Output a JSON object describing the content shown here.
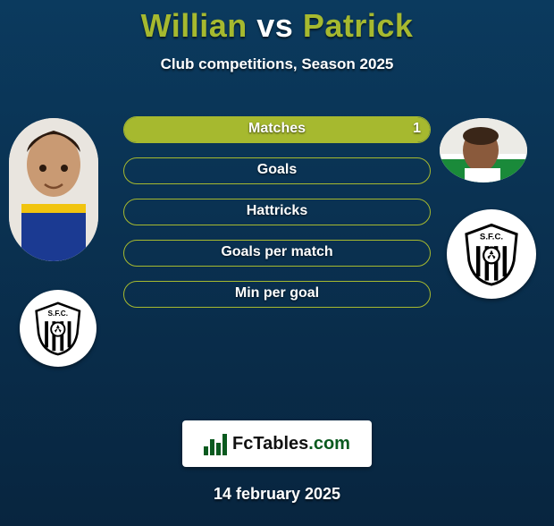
{
  "header": {
    "player1": "Willian",
    "vs": "vs",
    "player2": "Patrick",
    "subtitle": "Club competitions, Season 2025"
  },
  "colors": {
    "accent": "#a6b92f",
    "background_top": "#0b3a5e",
    "background_bottom": "#08253f",
    "text": "#ffffff",
    "logo_green": "#0a5a1f",
    "bar_label_fontsize": 16,
    "title_fontsize": 36
  },
  "players": {
    "p1": {
      "name": "Willian",
      "club_badge": "santos-fc-crest"
    },
    "p2": {
      "name": "Patrick",
      "club_badge": "santos-fc-crest"
    }
  },
  "stats": {
    "type": "h2h-bar",
    "bar_color": "#a6b92f",
    "border_color": "#a6b92f",
    "rows": [
      {
        "label": "Matches",
        "p1": null,
        "p2": "1",
        "fill_left_pct": 0,
        "fill_right_pct": 100
      },
      {
        "label": "Goals",
        "p1": null,
        "p2": null,
        "fill_left_pct": 0,
        "fill_right_pct": 0
      },
      {
        "label": "Hattricks",
        "p1": null,
        "p2": null,
        "fill_left_pct": 0,
        "fill_right_pct": 0
      },
      {
        "label": "Goals per match",
        "p1": null,
        "p2": null,
        "fill_left_pct": 0,
        "fill_right_pct": 0
      },
      {
        "label": "Min per goal",
        "p1": null,
        "p2": null,
        "fill_left_pct": 0,
        "fill_right_pct": 0
      }
    ]
  },
  "footer": {
    "brand_prefix": "FcTables",
    "brand_suffix": ".com",
    "date": "14 february 2025"
  }
}
